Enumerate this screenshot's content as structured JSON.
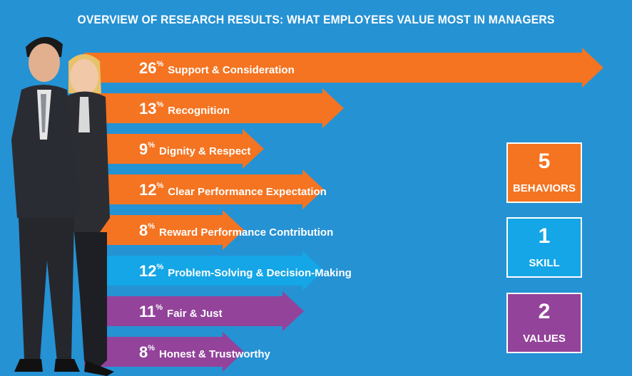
{
  "title": "OVERVIEW OF RESEARCH RESULTS: WHAT EMPLOYEES VALUE MOST IN MANAGERS",
  "colors": {
    "background": "#2592d4",
    "behavior": "#f47421",
    "skill": "#14a6e6",
    "value": "#93439a"
  },
  "chart_data": {
    "type": "bar",
    "title": "OVERVIEW OF RESEARCH RESULTS: WHAT EMPLOYEES VALUE MOST IN MANAGERS",
    "orientation": "horizontal",
    "unit": "%",
    "bars": [
      {
        "value": 26,
        "label": "Support & Consideration",
        "group": "behavior"
      },
      {
        "value": 13,
        "label": "Recognition",
        "group": "behavior"
      },
      {
        "value": 9,
        "label": "Dignity & Respect",
        "group": "behavior"
      },
      {
        "value": 12,
        "label": "Clear Performance Expectation",
        "group": "behavior"
      },
      {
        "value": 8,
        "label": "Reward Performance Contribution",
        "group": "behavior"
      },
      {
        "value": 12,
        "label": "Problem-Solving & Decision-Making",
        "group": "skill"
      },
      {
        "value": 11,
        "label": "Fair & Just",
        "group": "value"
      },
      {
        "value": 8,
        "label": "Honest & Trustworthy",
        "group": "value"
      }
    ]
  },
  "summary": [
    {
      "count": "5",
      "label": "BEHAVIORS",
      "group": "behavior"
    },
    {
      "count": "1",
      "label": "SKILL",
      "group": "skill"
    },
    {
      "count": "2",
      "label": "VALUES",
      "group": "value"
    }
  ]
}
